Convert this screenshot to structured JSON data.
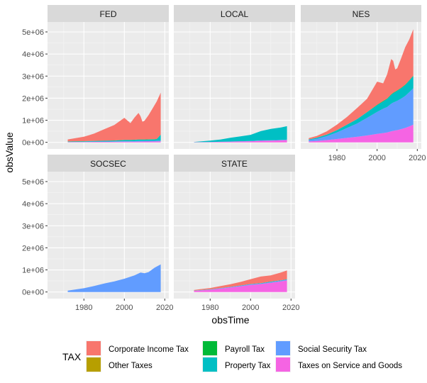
{
  "chart_data": {
    "type": "area",
    "layout": "faceted-stacked-area",
    "xlabel": "obsTime",
    "ylabel": "obsValue",
    "x_ticks": [
      1980,
      2000,
      2020
    ],
    "xlim": [
      1962,
      2022
    ],
    "y_ticks": [
      0,
      1000000,
      2000000,
      3000000,
      4000000,
      5000000
    ],
    "y_tick_labels": [
      "0e+00",
      "1e+06",
      "2e+06",
      "3e+06",
      "4e+06",
      "5e+06"
    ],
    "ylim": [
      -300000,
      5450000
    ],
    "legend": {
      "title": "TAX",
      "position": "bottom",
      "entries": [
        {
          "name": "Corporate Income Tax",
          "color": "#F8766D"
        },
        {
          "name": "Other Taxes",
          "color": "#B79F00"
        },
        {
          "name": "Payroll Tax",
          "color": "#00BA38"
        },
        {
          "name": "Property Tax",
          "color": "#00BFC4"
        },
        {
          "name": "Social Security Tax",
          "color": "#619CFF"
        },
        {
          "name": "Taxes on Service and Goods",
          "color": "#F564E3"
        }
      ]
    },
    "stack_order": [
      "Taxes on Service and Goods",
      "Social Security Tax",
      "Property Tax",
      "Payroll Tax",
      "Other Taxes",
      "Corporate Income Tax"
    ],
    "panels": [
      {
        "label": "FED",
        "x": [
          1972,
          1980,
          1985,
          1990,
          1995,
          2000,
          2003,
          2005,
          2007,
          2008,
          2009,
          2010,
          2012,
          2014,
          2015,
          2016,
          2018
        ],
        "series": [
          {
            "name": "Taxes on Service and Goods",
            "values": [
              10000,
              15000,
              20000,
              22000,
              25000,
              30000,
              30000,
              32000,
              35000,
              35000,
              35000,
              36000,
              38000,
              40000,
              40000,
              42000,
              45000
            ]
          },
          {
            "name": "Social Security Tax",
            "values": [
              5000,
              8000,
              10000,
              12000,
              15000,
              20000,
              20000,
              22000,
              25000,
              25000,
              25000,
              26000,
              28000,
              30000,
              30000,
              32000,
              35000
            ]
          },
          {
            "name": "Property Tax",
            "values": [
              20000,
              25000,
              30000,
              35000,
              40000,
              50000,
              50000,
              55000,
              60000,
              60000,
              60000,
              60000,
              60000,
              62000,
              62000,
              65000,
              260000
            ]
          },
          {
            "name": "Payroll Tax",
            "values": [
              5000,
              5000,
              5000,
              5000,
              5000,
              10000,
              10000,
              10000,
              10000,
              10000,
              10000,
              10000,
              10000,
              10000,
              10000,
              10000,
              10000
            ]
          },
          {
            "name": "Corporate Income Tax",
            "values": [
              90000,
              200000,
              330000,
              520000,
              700000,
              1000000,
              760000,
              1000000,
              1200000,
              1050000,
              800000,
              850000,
              1100000,
              1400000,
              1550000,
              1700000,
              1900000
            ]
          }
        ]
      },
      {
        "label": "LOCAL",
        "x": [
          1972,
          1980,
          1985,
          1990,
          1995,
          2000,
          2005,
          2010,
          2015,
          2018
        ],
        "series": [
          {
            "name": "Taxes on Service and Goods",
            "values": [
              5000,
              10000,
              20000,
              30000,
              40000,
              50000,
              70000,
              80000,
              90000,
              100000
            ]
          },
          {
            "name": "Social Security Tax",
            "values": [
              2000,
              5000,
              5000,
              8000,
              10000,
              10000,
              15000,
              15000,
              20000,
              20000
            ]
          },
          {
            "name": "Property Tax",
            "values": [
              10000,
              60000,
              100000,
              170000,
              220000,
              280000,
              420000,
              510000,
              560000,
              610000
            ]
          }
        ]
      },
      {
        "label": "NES",
        "x": [
          1966,
          1970,
          1975,
          1980,
          1985,
          1990,
          1995,
          2000,
          2003,
          2005,
          2007,
          2008,
          2009,
          2010,
          2012,
          2014,
          2016,
          2018
        ],
        "series": [
          {
            "name": "Taxes on Service and Goods",
            "values": [
              40000,
              60000,
              100000,
              150000,
              200000,
              250000,
              310000,
              380000,
              420000,
              450000,
              500000,
              520000,
              540000,
              550000,
              600000,
              650000,
              720000,
              800000
            ]
          },
          {
            "name": "Social Security Tax",
            "values": [
              60000,
              100000,
              180000,
              300000,
              450000,
              600000,
              800000,
              1000000,
              1100000,
              1150000,
              1250000,
              1280000,
              1300000,
              1330000,
              1380000,
              1450000,
              1550000,
              1650000
            ]
          },
          {
            "name": "Property Tax",
            "values": [
              30000,
              50000,
              70000,
              100000,
              150000,
              200000,
              250000,
              300000,
              330000,
              360000,
              400000,
              420000,
              440000,
              450000,
              470000,
              490000,
              520000,
              550000
            ]
          },
          {
            "name": "Payroll Tax",
            "values": [
              0,
              0,
              0,
              0,
              0,
              0,
              10000,
              20000,
              20000,
              20000,
              20000,
              20000,
              20000,
              20000,
              20000,
              20000,
              20000,
              20000
            ]
          },
          {
            "name": "Corporate Income Tax",
            "values": [
              60000,
              80000,
              150000,
              250000,
              350000,
              500000,
              600000,
              1050000,
              800000,
              1100000,
              1600000,
              1450000,
              1000000,
              1000000,
              1350000,
              1700000,
              1850000,
              2100000
            ]
          }
        ]
      },
      {
        "label": "SOCSEC",
        "x": [
          1972,
          1980,
          1985,
          1990,
          1995,
          2000,
          2005,
          2008,
          2010,
          2012,
          2015,
          2018
        ],
        "series": [
          {
            "name": "Social Security Tax",
            "values": [
              60000,
              170000,
              270000,
              380000,
              480000,
              600000,
              750000,
              880000,
              850000,
              900000,
              1100000,
              1250000
            ]
          }
        ]
      },
      {
        "label": "STATE",
        "x": [
          1972,
          1975,
          1980,
          1985,
          1990,
          1995,
          2000,
          2005,
          2010,
          2015,
          2018
        ],
        "series": [
          {
            "name": "Taxes on Service and Goods",
            "values": [
              50000,
              70000,
              100000,
              150000,
              200000,
              260000,
              320000,
              360000,
              420000,
              480000,
              530000
            ]
          },
          {
            "name": "Social Security Tax",
            "values": [
              5000,
              10000,
              10000,
              15000,
              20000,
              20000,
              25000,
              25000,
              30000,
              30000,
              30000
            ]
          },
          {
            "name": "Property Tax",
            "values": [
              5000,
              5000,
              10000,
              10000,
              10000,
              15000,
              15000,
              15000,
              20000,
              20000,
              20000
            ]
          },
          {
            "name": "Corporate Income Tax",
            "values": [
              30000,
              40000,
              60000,
              90000,
              120000,
              160000,
              220000,
              300000,
              280000,
              350000,
              400000
            ]
          }
        ]
      }
    ]
  }
}
